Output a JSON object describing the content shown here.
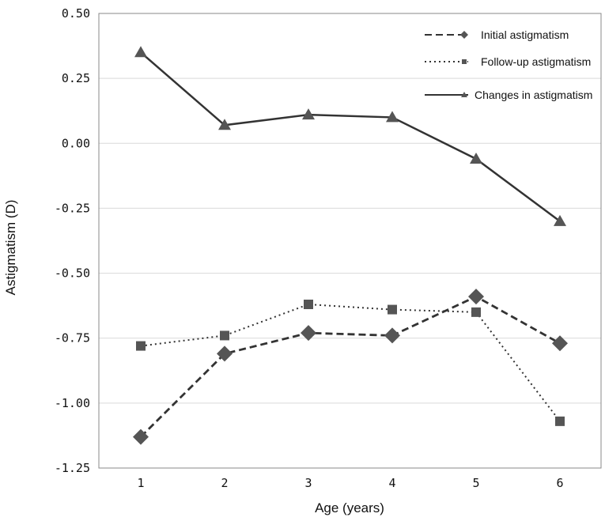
{
  "chart_data": {
    "type": "line",
    "title": "",
    "xlabel": "Age (years)",
    "ylabel": "Astigmatism (D)",
    "categories": [
      "1",
      "2",
      "3",
      "4",
      "5",
      "6"
    ],
    "x": [
      1,
      2,
      3,
      4,
      5,
      6
    ],
    "ylim": [
      -1.25,
      0.5
    ],
    "yticks": [
      "0.50",
      "0.25",
      "0.00",
      "-0.25",
      "-0.50",
      "-0.75",
      "-1.00",
      "-1.25"
    ],
    "ytick_values": [
      0.5,
      0.25,
      0.0,
      -0.25,
      -0.5,
      -0.75,
      -1.0,
      -1.25
    ],
    "grid": true,
    "legend_position": "top-right",
    "series": [
      {
        "name": "Initial astigmatism",
        "style": "dashed",
        "marker": "diamond",
        "color": "#555555",
        "values": [
          -1.13,
          -0.81,
          -0.73,
          -0.74,
          -0.59,
          -0.77
        ]
      },
      {
        "name": "Follow-up astigmatism",
        "style": "dotted",
        "marker": "square",
        "color": "#555555",
        "values": [
          -0.78,
          -0.74,
          -0.62,
          -0.64,
          -0.65,
          -1.07
        ]
      },
      {
        "name": "Changes in astigmatism",
        "style": "solid",
        "marker": "triangle",
        "color": "#555555",
        "values": [
          0.35,
          0.07,
          0.11,
          0.1,
          -0.06,
          -0.3
        ]
      }
    ]
  }
}
